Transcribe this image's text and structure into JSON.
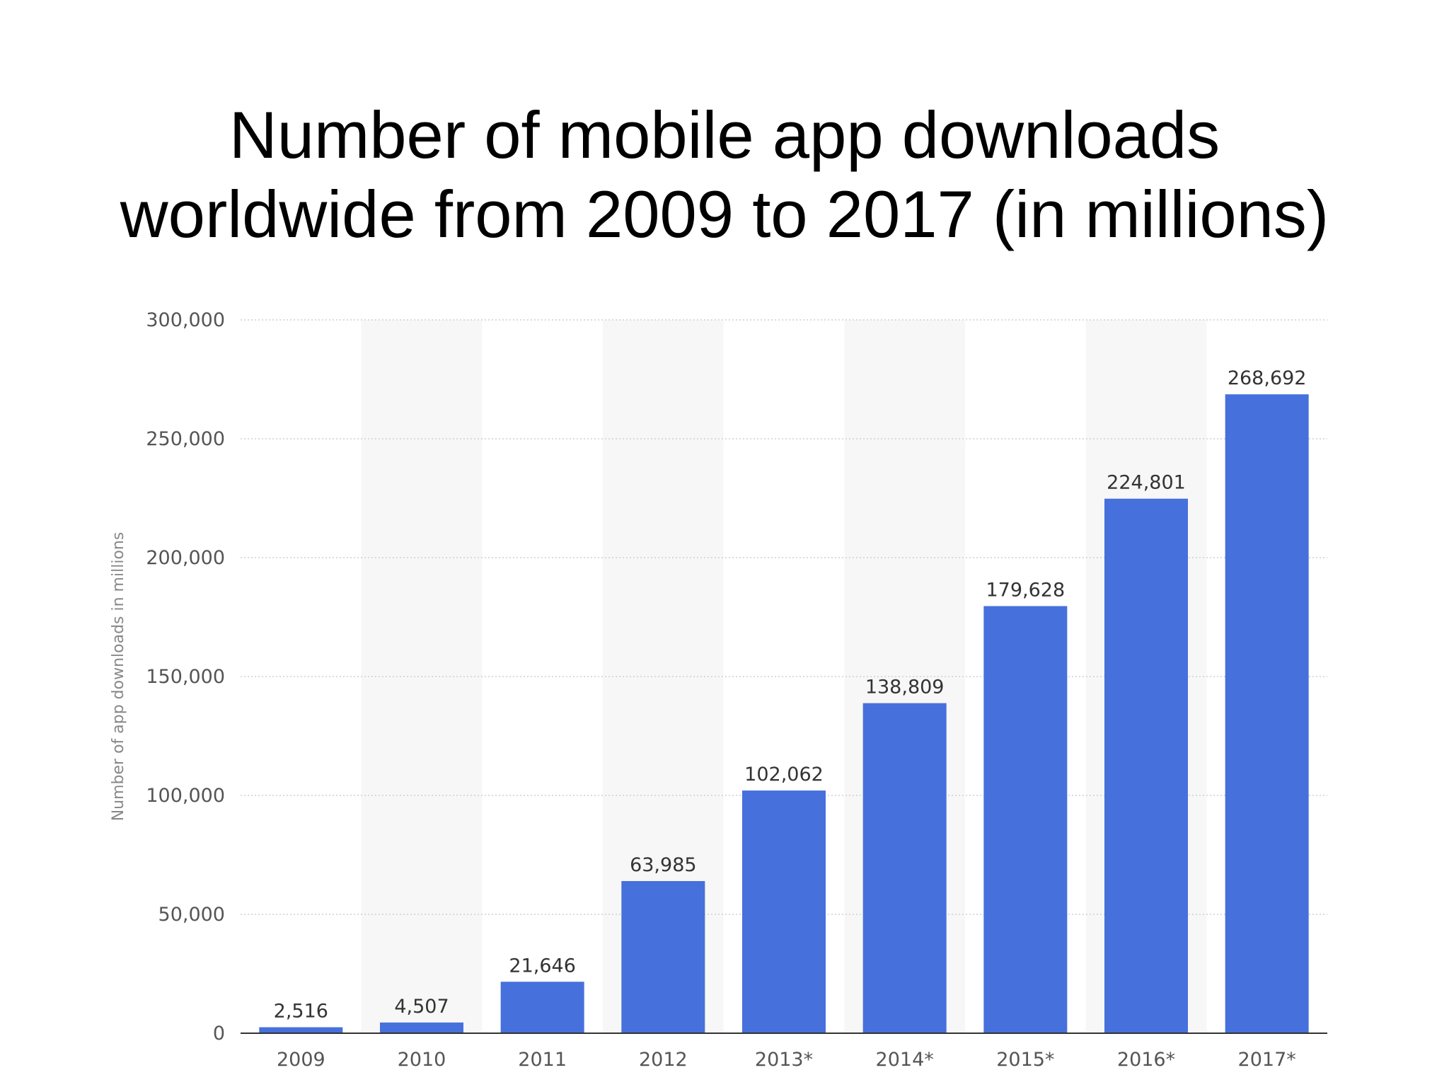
{
  "chart_data": {
    "type": "bar",
    "title_lines": [
      "Number of mobile app downloads",
      "worldwide from 2009 to 2017 (in millions)"
    ],
    "categories": [
      "2009",
      "2010",
      "2011",
      "2012",
      "2013*",
      "2014*",
      "2015*",
      "2016*",
      "2017*"
    ],
    "values": [
      2516,
      4507,
      21646,
      63985,
      102062,
      138809,
      179628,
      224801,
      268692
    ],
    "value_labels": [
      "2,516",
      "4,507",
      "21,646",
      "63,985",
      "102,062",
      "138,809",
      "179,628",
      "224,801",
      "268,692"
    ],
    "y_ticks": [
      0,
      50000,
      100000,
      150000,
      200000,
      250000,
      300000
    ],
    "y_tick_labels": [
      "0",
      "50,000",
      "100,000",
      "150,000",
      "200,000",
      "250,000",
      "300,000"
    ],
    "ylim": [
      0,
      300000
    ],
    "ylabel": "Number of app downloads in millions",
    "xlabel": "",
    "grid": true,
    "colors": {
      "bar": "#4670DB",
      "grid": "#cfcfcf",
      "band": "#f7f7f7",
      "axis": "#333333"
    }
  }
}
